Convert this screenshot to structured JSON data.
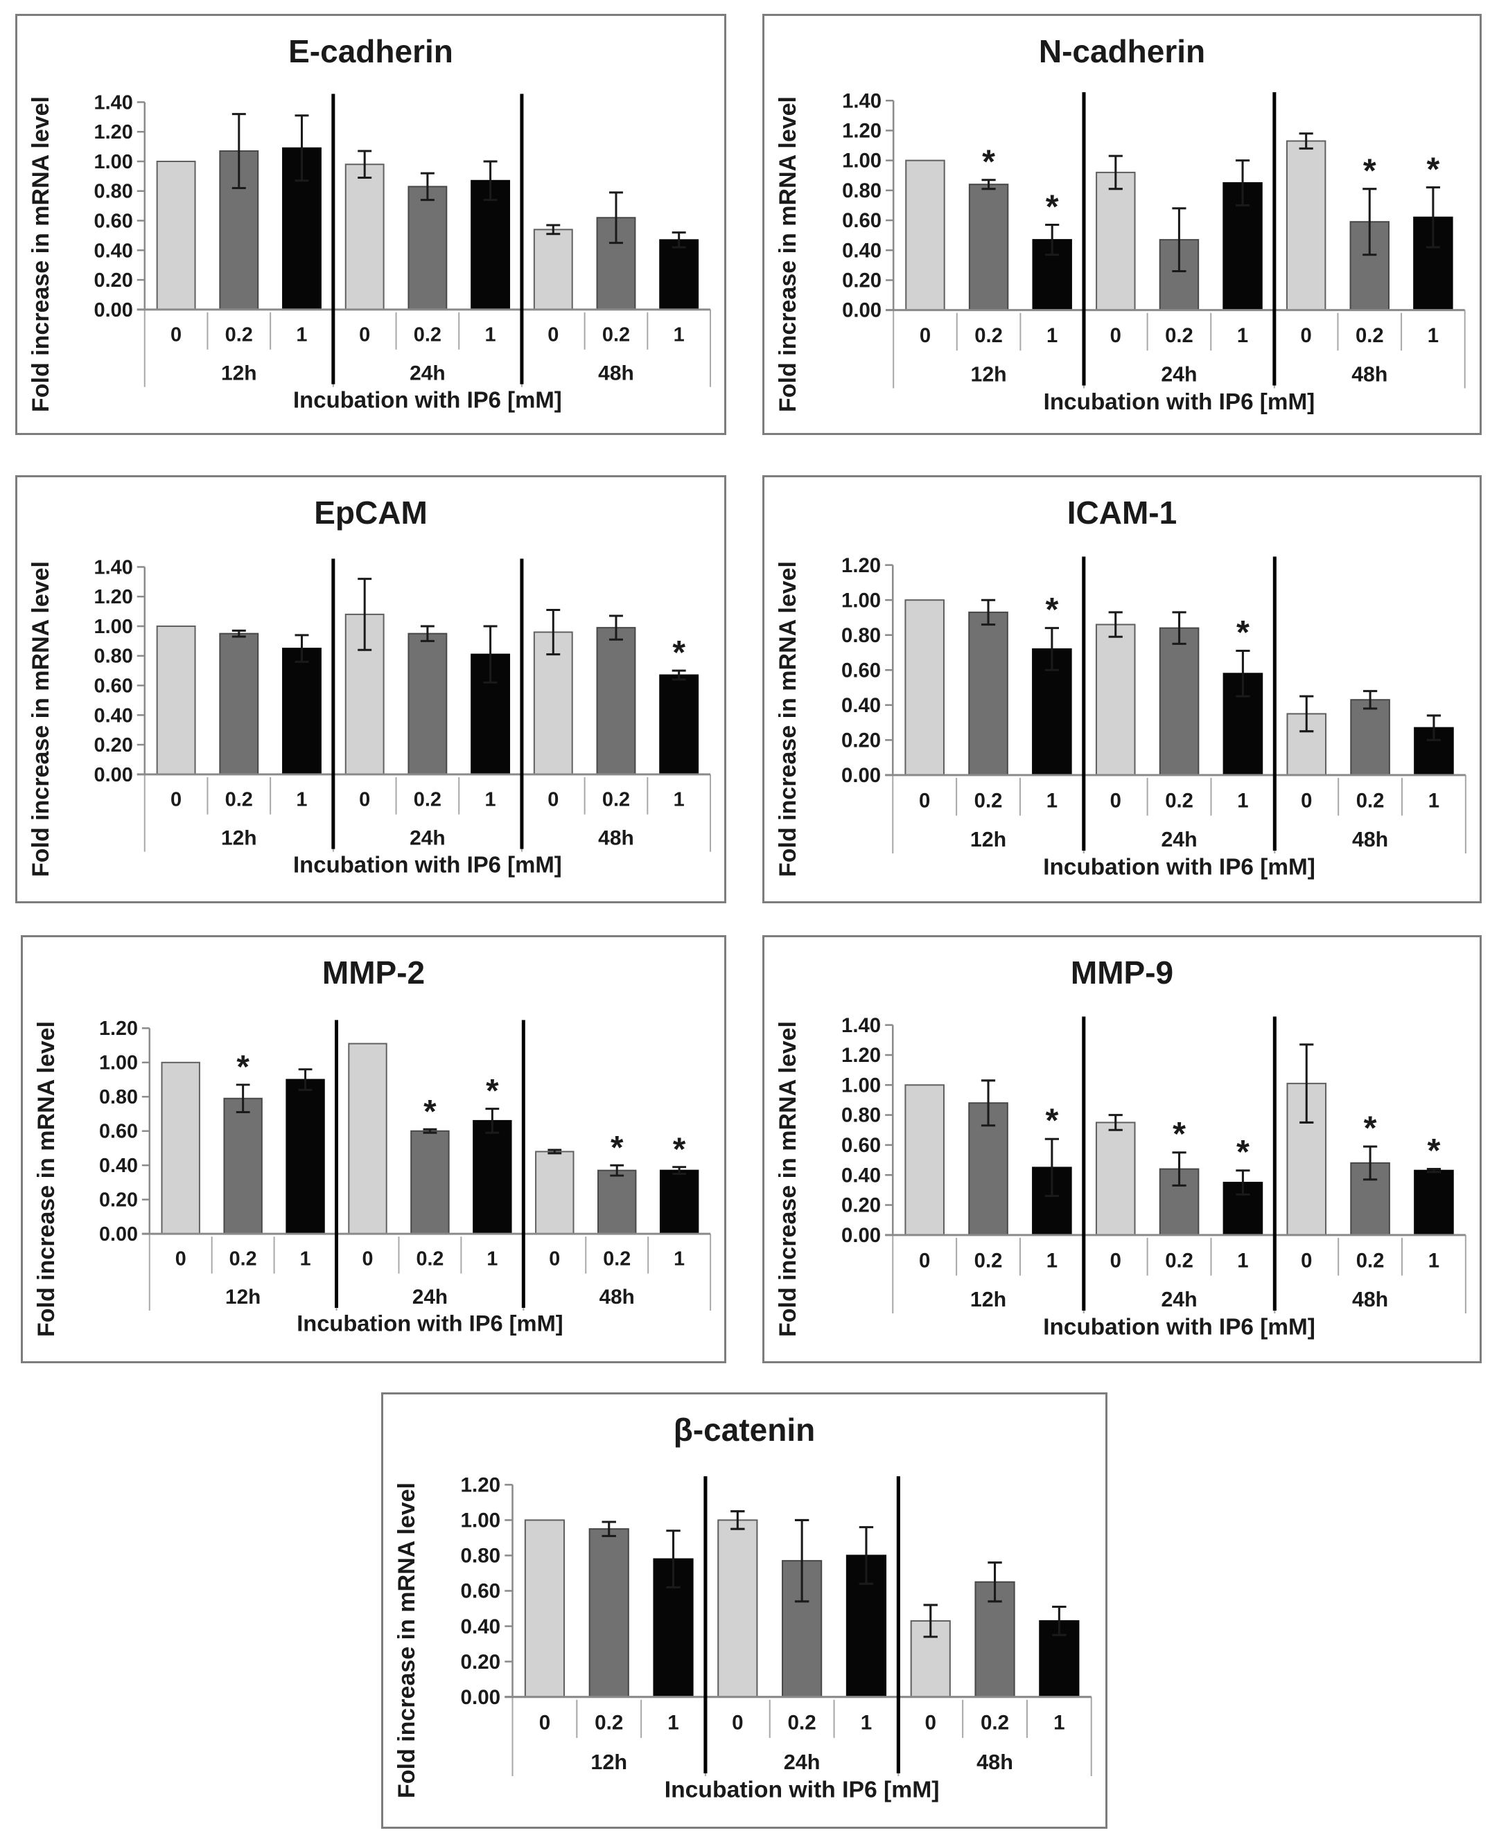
{
  "figure": {
    "description": "Seven bar chart panels showing fold increase in mRNA level after incubation with IP6",
    "background": "#ffffff"
  },
  "shared": {
    "ylabel": "Fold increase in mRNA level",
    "xlabel": "Incubation with IP6 [mM]",
    "time_groups": [
      "12h",
      "24h",
      "48h"
    ],
    "concentrations": [
      "0",
      "0.2",
      "1"
    ],
    "significance_marker": "*",
    "bar_colors": [
      {
        "name": "conc-0-light-gray",
        "fill": "#d2d2d2",
        "stroke": "#606060"
      },
      {
        "name": "conc-0.2-dark-gray",
        "fill": "#717171",
        "stroke": "#484848"
      },
      {
        "name": "conc-1-black",
        "fill": "#060606",
        "stroke": "#060606"
      }
    ],
    "axis_color": "#8a8a8a",
    "separator_light": "#a8a8a8",
    "separator_thick": "#000000",
    "text_color": "#1a1a1a",
    "panel_border": "#7d7d7d"
  },
  "chart_data": [
    {
      "type": "bar",
      "title": "E-cadherin",
      "ylabel": "Fold increase in mRNA level",
      "xlabel": "Incubation with IP6 [mM]",
      "ylim": [
        0,
        1.4
      ],
      "ytick_step": 0.2,
      "grid": false,
      "groups": [
        {
          "label": "12h",
          "bars": [
            {
              "conc": "0",
              "value": 1.0,
              "err": 0,
              "sig": false
            },
            {
              "conc": "0.2",
              "value": 1.07,
              "err": 0.25,
              "sig": false
            },
            {
              "conc": "1",
              "value": 1.09,
              "err": 0.22,
              "sig": false
            }
          ]
        },
        {
          "label": "24h",
          "bars": [
            {
              "conc": "0",
              "value": 0.98,
              "err": 0.09,
              "sig": false
            },
            {
              "conc": "0.2",
              "value": 0.83,
              "err": 0.09,
              "sig": false
            },
            {
              "conc": "1",
              "value": 0.87,
              "err": 0.13,
              "sig": false
            }
          ]
        },
        {
          "label": "48h",
          "bars": [
            {
              "conc": "0",
              "value": 0.54,
              "err": 0.03,
              "sig": false
            },
            {
              "conc": "0.2",
              "value": 0.62,
              "err": 0.17,
              "sig": false
            },
            {
              "conc": "1",
              "value": 0.47,
              "err": 0.05,
              "sig": false
            }
          ]
        }
      ]
    },
    {
      "type": "bar",
      "title": "N-cadherin",
      "ylabel": "Fold increase in mRNA level",
      "xlabel": "Incubation with IP6 [mM]",
      "ylim": [
        0,
        1.4
      ],
      "ytick_step": 0.2,
      "grid": false,
      "groups": [
        {
          "label": "12h",
          "bars": [
            {
              "conc": "0",
              "value": 1.0,
              "err": 0,
              "sig": false
            },
            {
              "conc": "0.2",
              "value": 0.84,
              "err": 0.03,
              "sig": true
            },
            {
              "conc": "1",
              "value": 0.47,
              "err": 0.1,
              "sig": true
            }
          ]
        },
        {
          "label": "24h",
          "bars": [
            {
              "conc": "0",
              "value": 0.92,
              "err": 0.11,
              "sig": false
            },
            {
              "conc": "0.2",
              "value": 0.47,
              "err": 0.21,
              "sig": false
            },
            {
              "conc": "1",
              "value": 0.85,
              "err": 0.15,
              "sig": false
            }
          ]
        },
        {
          "label": "48h",
          "bars": [
            {
              "conc": "0",
              "value": 1.13,
              "err": 0.05,
              "sig": false
            },
            {
              "conc": "0.2",
              "value": 0.59,
              "err": 0.22,
              "sig": true
            },
            {
              "conc": "1",
              "value": 0.62,
              "err": 0.2,
              "sig": true
            }
          ]
        }
      ]
    },
    {
      "type": "bar",
      "title": "EpCAM",
      "ylabel": "Fold increase in mRNA level",
      "xlabel": "Incubation with IP6 [mM]",
      "ylim": [
        0,
        1.4
      ],
      "ytick_step": 0.2,
      "grid": false,
      "groups": [
        {
          "label": "12h",
          "bars": [
            {
              "conc": "0",
              "value": 1.0,
              "err": 0,
              "sig": false
            },
            {
              "conc": "0.2",
              "value": 0.95,
              "err": 0.02,
              "sig": false
            },
            {
              "conc": "1",
              "value": 0.85,
              "err": 0.09,
              "sig": false
            }
          ]
        },
        {
          "label": "24h",
          "bars": [
            {
              "conc": "0",
              "value": 1.08,
              "err": 0.24,
              "sig": false
            },
            {
              "conc": "0.2",
              "value": 0.95,
              "err": 0.05,
              "sig": false
            },
            {
              "conc": "1",
              "value": 0.81,
              "err": 0.19,
              "sig": false
            }
          ]
        },
        {
          "label": "48h",
          "bars": [
            {
              "conc": "0",
              "value": 0.96,
              "err": 0.15,
              "sig": false
            },
            {
              "conc": "0.2",
              "value": 0.99,
              "err": 0.08,
              "sig": false
            },
            {
              "conc": "1",
              "value": 0.67,
              "err": 0.03,
              "sig": true
            }
          ]
        }
      ]
    },
    {
      "type": "bar",
      "title": "ICAM-1",
      "ylabel": "Fold increase in mRNA level",
      "xlabel": "Incubation with IP6 [mM]",
      "ylim": [
        0,
        1.2
      ],
      "ytick_step": 0.2,
      "grid": false,
      "groups": [
        {
          "label": "12h",
          "bars": [
            {
              "conc": "0",
              "value": 1.0,
              "err": 0,
              "sig": false
            },
            {
              "conc": "0.2",
              "value": 0.93,
              "err": 0.07,
              "sig": false
            },
            {
              "conc": "1",
              "value": 0.72,
              "err": 0.12,
              "sig": true
            }
          ]
        },
        {
          "label": "24h",
          "bars": [
            {
              "conc": "0",
              "value": 0.86,
              "err": 0.07,
              "sig": false
            },
            {
              "conc": "0.2",
              "value": 0.84,
              "err": 0.09,
              "sig": false
            },
            {
              "conc": "1",
              "value": 0.58,
              "err": 0.13,
              "sig": true
            }
          ]
        },
        {
          "label": "48h",
          "bars": [
            {
              "conc": "0",
              "value": 0.35,
              "err": 0.1,
              "sig": false
            },
            {
              "conc": "0.2",
              "value": 0.43,
              "err": 0.05,
              "sig": false
            },
            {
              "conc": "1",
              "value": 0.27,
              "err": 0.07,
              "sig": false
            }
          ]
        }
      ]
    },
    {
      "type": "bar",
      "title": "MMP-2",
      "ylabel": "Fold increase in mRNA level",
      "xlabel": "Incubation with IP6 [mM]",
      "ylim": [
        0,
        1.2
      ],
      "ytick_step": 0.2,
      "grid": false,
      "groups": [
        {
          "label": "12h",
          "bars": [
            {
              "conc": "0",
              "value": 1.0,
              "err": 0,
              "sig": false
            },
            {
              "conc": "0.2",
              "value": 0.79,
              "err": 0.08,
              "sig": true
            },
            {
              "conc": "1",
              "value": 0.9,
              "err": 0.06,
              "sig": false
            }
          ]
        },
        {
          "label": "24h",
          "bars": [
            {
              "conc": "0",
              "value": 1.11,
              "err": 0,
              "sig": false
            },
            {
              "conc": "0.2",
              "value": 0.6,
              "err": 0.01,
              "sig": true
            },
            {
              "conc": "1",
              "value": 0.66,
              "err": 0.07,
              "sig": true
            }
          ]
        },
        {
          "label": "48h",
          "bars": [
            {
              "conc": "0",
              "value": 0.48,
              "err": 0.01,
              "sig": false
            },
            {
              "conc": "0.2",
              "value": 0.37,
              "err": 0.03,
              "sig": true
            },
            {
              "conc": "1",
              "value": 0.37,
              "err": 0.02,
              "sig": true
            }
          ]
        }
      ]
    },
    {
      "type": "bar",
      "title": "MMP-9",
      "ylabel": "Fold increase in mRNA level",
      "xlabel": "Incubation with IP6 [mM]",
      "ylim": [
        0,
        1.4
      ],
      "ytick_step": 0.2,
      "grid": false,
      "groups": [
        {
          "label": "12h",
          "bars": [
            {
              "conc": "0",
              "value": 1.0,
              "err": 0,
              "sig": false
            },
            {
              "conc": "0.2",
              "value": 0.88,
              "err": 0.15,
              "sig": false
            },
            {
              "conc": "1",
              "value": 0.45,
              "err": 0.19,
              "sig": true
            }
          ]
        },
        {
          "label": "24h",
          "bars": [
            {
              "conc": "0",
              "value": 0.75,
              "err": 0.05,
              "sig": false
            },
            {
              "conc": "0.2",
              "value": 0.44,
              "err": 0.11,
              "sig": true
            },
            {
              "conc": "1",
              "value": 0.35,
              "err": 0.08,
              "sig": true
            }
          ]
        },
        {
          "label": "48h",
          "bars": [
            {
              "conc": "0",
              "value": 1.01,
              "err": 0.26,
              "sig": false
            },
            {
              "conc": "0.2",
              "value": 0.48,
              "err": 0.11,
              "sig": true
            },
            {
              "conc": "1",
              "value": 0.43,
              "err": 0.01,
              "sig": true
            }
          ]
        }
      ]
    },
    {
      "type": "bar",
      "title": "β-catenin",
      "ylabel": "Fold increase in mRNA level",
      "xlabel": "Incubation with IP6 [mM]",
      "ylim": [
        0,
        1.2
      ],
      "ytick_step": 0.2,
      "grid": false,
      "groups": [
        {
          "label": "12h",
          "bars": [
            {
              "conc": "0",
              "value": 1.0,
              "err": 0,
              "sig": false
            },
            {
              "conc": "0.2",
              "value": 0.95,
              "err": 0.04,
              "sig": false
            },
            {
              "conc": "1",
              "value": 0.78,
              "err": 0.16,
              "sig": false
            }
          ]
        },
        {
          "label": "24h",
          "bars": [
            {
              "conc": "0",
              "value": 1.0,
              "err": 0.05,
              "sig": false
            },
            {
              "conc": "0.2",
              "value": 0.77,
              "err": 0.23,
              "sig": false
            },
            {
              "conc": "1",
              "value": 0.8,
              "err": 0.16,
              "sig": false
            }
          ]
        },
        {
          "label": "48h",
          "bars": [
            {
              "conc": "0",
              "value": 0.43,
              "err": 0.09,
              "sig": false
            },
            {
              "conc": "0.2",
              "value": 0.65,
              "err": 0.11,
              "sig": false
            },
            {
              "conc": "1",
              "value": 0.43,
              "err": 0.08,
              "sig": false
            }
          ]
        }
      ]
    }
  ]
}
